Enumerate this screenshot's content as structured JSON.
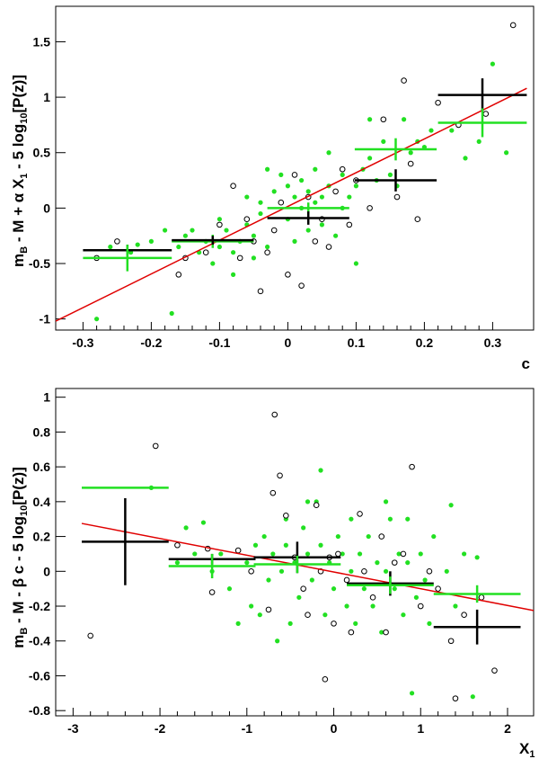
{
  "chart_data": [
    {
      "type": "scatter",
      "xlabel": "c",
      "ylabel_parts": [
        "m",
        "B",
        " - M + α X",
        "1",
        " - 5 log",
        "10",
        "[P(z)]"
      ],
      "xlim": [
        -0.34,
        0.36
      ],
      "ylim": [
        -1.1,
        1.82
      ],
      "xticks": [
        -0.3,
        -0.2,
        -0.1,
        0,
        0.1,
        0.2,
        0.3
      ],
      "xtick_labels": [
        "-0.3",
        "-0.2",
        "-0.1",
        "0",
        "0.1",
        "0.2",
        "0.3"
      ],
      "yticks": [
        -1,
        -0.5,
        0,
        0.5,
        1,
        1.5
      ],
      "ytick_labels": [
        "-1",
        "-0.5",
        "0",
        "0.5",
        "1",
        "1.5"
      ],
      "fit_line": {
        "x": [
          -0.34,
          0.35
        ],
        "y": [
          -1.02,
          1.08
        ],
        "color": "#e00000"
      },
      "series": [
        {
          "name": "green points",
          "color": "#22e022",
          "points": [
            [
              -0.28,
              -1.0
            ],
            [
              -0.26,
              -0.35
            ],
            [
              -0.23,
              -0.4
            ],
            [
              -0.22,
              -0.33
            ],
            [
              -0.2,
              -0.3
            ],
            [
              -0.18,
              -0.2
            ],
            [
              -0.17,
              -0.95
            ],
            [
              -0.16,
              -0.35
            ],
            [
              -0.15,
              -0.45
            ],
            [
              -0.15,
              -0.25
            ],
            [
              -0.14,
              -0.2
            ],
            [
              -0.13,
              -0.4
            ],
            [
              -0.12,
              -0.3
            ],
            [
              -0.11,
              -0.5
            ],
            [
              -0.1,
              -0.35
            ],
            [
              -0.1,
              -0.1
            ],
            [
              -0.09,
              -0.2
            ],
            [
              -0.08,
              -0.4
            ],
            [
              -0.08,
              -0.6
            ],
            [
              -0.07,
              -0.3
            ],
            [
              -0.06,
              0.1
            ],
            [
              -0.06,
              -0.15
            ],
            [
              -0.05,
              -0.25
            ],
            [
              -0.05,
              -0.45
            ],
            [
              -0.04,
              0.05
            ],
            [
              -0.04,
              -0.05
            ],
            [
              -0.03,
              0.35
            ],
            [
              -0.03,
              -0.35
            ],
            [
              -0.02,
              0.15
            ],
            [
              -0.02,
              -0.2
            ],
            [
              -0.01,
              0.3
            ],
            [
              -0.01,
              0.05
            ],
            [
              0.0,
              0.2
            ],
            [
              0.0,
              -0.1
            ],
            [
              0.01,
              0.1
            ],
            [
              0.01,
              -0.3
            ],
            [
              0.02,
              0.0
            ],
            [
              0.02,
              0.25
            ],
            [
              0.03,
              0.15
            ],
            [
              0.03,
              -0.2
            ],
            [
              0.04,
              0.05
            ],
            [
              0.04,
              0.35
            ],
            [
              0.05,
              0.1
            ],
            [
              0.05,
              -0.15
            ],
            [
              0.06,
              0.2
            ],
            [
              0.06,
              0.5
            ],
            [
              0.07,
              0.15
            ],
            [
              0.07,
              -0.25
            ],
            [
              0.08,
              0.3
            ],
            [
              0.08,
              0.0
            ],
            [
              0.09,
              0.1
            ],
            [
              0.1,
              0.2
            ],
            [
              0.1,
              -0.5
            ],
            [
              0.11,
              0.35
            ],
            [
              0.12,
              0.8
            ],
            [
              0.12,
              0.45
            ],
            [
              0.13,
              0.25
            ],
            [
              0.14,
              0.6
            ],
            [
              0.15,
              0.3
            ],
            [
              0.16,
              0.2
            ],
            [
              0.17,
              0.8
            ],
            [
              0.18,
              0.5
            ],
            [
              0.19,
              0.6
            ],
            [
              0.2,
              0.55
            ],
            [
              0.21,
              0.7
            ],
            [
              0.22,
              0.95
            ],
            [
              0.24,
              0.7
            ],
            [
              0.26,
              0.45
            ],
            [
              0.28,
              0.6
            ],
            [
              0.3,
              1.3
            ],
            [
              0.32,
              0.5
            ]
          ]
        },
        {
          "name": "open circles",
          "color": "#000000",
          "points": [
            [
              -0.28,
              -0.45
            ],
            [
              -0.25,
              -0.3
            ],
            [
              -0.16,
              -0.6
            ],
            [
              -0.15,
              -0.45
            ],
            [
              -0.12,
              -0.4
            ],
            [
              -0.1,
              -0.15
            ],
            [
              -0.08,
              0.2
            ],
            [
              -0.07,
              -0.45
            ],
            [
              -0.06,
              -0.1
            ],
            [
              -0.05,
              -0.3
            ],
            [
              -0.04,
              -0.75
            ],
            [
              -0.03,
              -0.4
            ],
            [
              -0.02,
              -0.2
            ],
            [
              -0.01,
              0.05
            ],
            [
              0.0,
              -0.6
            ],
            [
              0.01,
              0.3
            ],
            [
              0.02,
              -0.7
            ],
            [
              0.03,
              0.1
            ],
            [
              0.04,
              -0.3
            ],
            [
              0.05,
              -0.1
            ],
            [
              0.06,
              -0.35
            ],
            [
              0.07,
              0.15
            ],
            [
              0.08,
              0.35
            ],
            [
              0.09,
              -0.15
            ],
            [
              0.1,
              0.25
            ],
            [
              0.12,
              0.0
            ],
            [
              0.14,
              0.8
            ],
            [
              0.16,
              0.1
            ],
            [
              0.17,
              1.15
            ],
            [
              0.18,
              0.4
            ],
            [
              0.19,
              -0.1
            ],
            [
              0.22,
              0.95
            ],
            [
              0.25,
              0.75
            ],
            [
              0.29,
              0.85
            ],
            [
              0.33,
              1.65
            ]
          ]
        }
      ],
      "binned": [
        {
          "color": "#000000",
          "x": -0.235,
          "xerr": 0.065,
          "y": -0.38,
          "yerr": 0.05
        },
        {
          "color": "#22e022",
          "x": -0.235,
          "xerr": 0.065,
          "y": -0.45,
          "yerr": 0.12
        },
        {
          "color": "#22e022",
          "x": -0.11,
          "xerr": 0.06,
          "y": -0.3,
          "yerr": 0.06
        },
        {
          "color": "#000000",
          "x": -0.11,
          "xerr": 0.06,
          "y": -0.29,
          "yerr": 0.04
        },
        {
          "color": "#22e022",
          "x": 0.03,
          "xerr": 0.06,
          "y": 0.0,
          "yerr": 0.05
        },
        {
          "color": "#000000",
          "x": 0.03,
          "xerr": 0.06,
          "y": -0.09,
          "yerr": 0.06
        },
        {
          "color": "#22e022",
          "x": 0.158,
          "xerr": 0.06,
          "y": 0.53,
          "yerr": 0.1
        },
        {
          "color": "#000000",
          "x": 0.158,
          "xerr": 0.06,
          "y": 0.25,
          "yerr": 0.1
        },
        {
          "color": "#000000",
          "x": 0.285,
          "xerr": 0.065,
          "y": 1.02,
          "yerr": 0.15
        },
        {
          "color": "#22e022",
          "x": 0.285,
          "xerr": 0.065,
          "y": 0.77,
          "yerr": 0.13
        }
      ]
    },
    {
      "type": "scatter",
      "xlabel_parts": [
        "X",
        "1"
      ],
      "ylabel_parts": [
        "m",
        "B",
        " - M - β c - 5 log",
        "10",
        "[P(z)]"
      ],
      "xlim": [
        -3.2,
        2.3
      ],
      "ylim": [
        -0.83,
        1.05
      ],
      "xticks": [
        -3,
        -2,
        -1,
        0,
        1,
        2
      ],
      "xtick_labels": [
        "-3",
        "-2",
        "-1",
        "0",
        "1",
        "2"
      ],
      "yticks": [
        -0.8,
        -0.6,
        -0.4,
        -0.2,
        0,
        0.2,
        0.4,
        0.6,
        0.8,
        1
      ],
      "ytick_labels": [
        "-0.8",
        "-0.6",
        "-0.4",
        "-0.2",
        "0",
        "0.2",
        "0.4",
        "0.6",
        "0.8",
        "1"
      ],
      "fit_line": {
        "x": [
          -2.9,
          2.3
        ],
        "y": [
          0.275,
          -0.225
        ],
        "color": "#e00000"
      },
      "series": [
        {
          "name": "green points",
          "color": "#22e022",
          "points": [
            [
              -2.1,
              0.48
            ],
            [
              -1.8,
              0.05
            ],
            [
              -1.7,
              0.25
            ],
            [
              -1.6,
              0.1
            ],
            [
              -1.5,
              0.28
            ],
            [
              -1.4,
              0.0
            ],
            [
              -1.3,
              0.1
            ],
            [
              -1.2,
              -0.1
            ],
            [
              -1.1,
              -0.3
            ],
            [
              -1.0,
              0.05
            ],
            [
              -0.95,
              -0.2
            ],
            [
              -0.9,
              0.15
            ],
            [
              -0.85,
              -0.25
            ],
            [
              -0.8,
              0.2
            ],
            [
              -0.75,
              -0.05
            ],
            [
              -0.7,
              0.1
            ],
            [
              -0.65,
              -0.4
            ],
            [
              -0.6,
              0.0
            ],
            [
              -0.55,
              0.15
            ],
            [
              -0.5,
              -0.3
            ],
            [
              -0.45,
              0.05
            ],
            [
              -0.4,
              -0.15
            ],
            [
              -0.35,
              0.25
            ],
            [
              -0.3,
              0.1
            ],
            [
              -0.25,
              -0.05
            ],
            [
              -0.2,
              0.4
            ],
            [
              -0.15,
              0.15
            ],
            [
              -0.1,
              -0.25
            ],
            [
              -0.05,
              0.05
            ],
            [
              0.0,
              -0.1
            ],
            [
              0.05,
              0.2
            ],
            [
              0.1,
              0.1
            ],
            [
              0.15,
              -0.2
            ],
            [
              0.2,
              0.0
            ],
            [
              0.25,
              -0.3
            ],
            [
              0.3,
              0.1
            ],
            [
              0.35,
              -0.1
            ],
            [
              0.4,
              0.2
            ],
            [
              0.45,
              -0.2
            ],
            [
              0.5,
              0.05
            ],
            [
              0.55,
              -0.35
            ],
            [
              0.6,
              0.0
            ],
            [
              0.65,
              0.3
            ],
            [
              0.7,
              -0.1
            ],
            [
              0.75,
              0.1
            ],
            [
              0.8,
              -0.25
            ],
            [
              0.85,
              0.05
            ],
            [
              0.9,
              -0.7
            ],
            [
              0.95,
              -0.15
            ],
            [
              1.0,
              0.1
            ],
            [
              1.05,
              -0.05
            ],
            [
              1.1,
              -0.3
            ],
            [
              1.15,
              0.2
            ],
            [
              1.2,
              -0.1
            ],
            [
              1.3,
              0.0
            ],
            [
              1.35,
              0.38
            ],
            [
              1.4,
              -0.2
            ],
            [
              1.5,
              0.1
            ],
            [
              1.6,
              -0.72
            ],
            [
              1.65,
              0.08
            ],
            [
              -0.55,
              0.3
            ],
            [
              -0.3,
              0.4
            ],
            [
              0.6,
              0.4
            ],
            [
              0.2,
              0.3
            ],
            [
              -0.15,
              0.58
            ],
            [
              0.85,
              0.3
            ]
          ]
        },
        {
          "name": "open circles",
          "color": "#000000",
          "points": [
            [
              -2.8,
              -0.37
            ],
            [
              -2.05,
              0.72
            ],
            [
              -1.8,
              0.15
            ],
            [
              -1.45,
              0.13
            ],
            [
              -1.4,
              -0.12
            ],
            [
              -1.1,
              0.12
            ],
            [
              -0.95,
              0.0
            ],
            [
              -0.75,
              -0.22
            ],
            [
              -0.7,
              0.45
            ],
            [
              -0.68,
              0.9
            ],
            [
              -0.62,
              0.55
            ],
            [
              -0.55,
              0.32
            ],
            [
              -0.45,
              0.08
            ],
            [
              -0.35,
              -0.1
            ],
            [
              -0.3,
              -0.25
            ],
            [
              -0.2,
              0.38
            ],
            [
              -0.15,
              0.0
            ],
            [
              -0.1,
              -0.62
            ],
            [
              -0.05,
              0.08
            ],
            [
              0.0,
              -0.3
            ],
            [
              0.05,
              0.1
            ],
            [
              0.15,
              -0.05
            ],
            [
              0.2,
              -0.35
            ],
            [
              0.3,
              0.33
            ],
            [
              0.35,
              0.0
            ],
            [
              0.45,
              -0.15
            ],
            [
              0.55,
              0.2
            ],
            [
              0.6,
              -0.35
            ],
            [
              0.7,
              0.05
            ],
            [
              0.8,
              0.1
            ],
            [
              0.9,
              0.6
            ],
            [
              1.0,
              -0.2
            ],
            [
              1.1,
              0.0
            ],
            [
              1.2,
              -0.1
            ],
            [
              1.35,
              -0.4
            ],
            [
              1.4,
              -0.73
            ],
            [
              1.5,
              -0.25
            ],
            [
              1.7,
              -0.15
            ],
            [
              1.85,
              -0.57
            ]
          ]
        }
      ],
      "binned": [
        {
          "color": "#22e022",
          "x": -2.4,
          "xerr": 0.5,
          "y": 0.48,
          "yerr": 0.0
        },
        {
          "color": "#000000",
          "x": -2.4,
          "xerr": 0.5,
          "y": 0.17,
          "yerr": 0.25
        },
        {
          "color": "#000000",
          "x": -1.4,
          "xerr": 0.5,
          "y": 0.07,
          "yerr": 0.03
        },
        {
          "color": "#22e022",
          "x": -1.4,
          "xerr": 0.5,
          "y": 0.03,
          "yerr": 0.07
        },
        {
          "color": "#000000",
          "x": -0.42,
          "xerr": 0.5,
          "y": 0.08,
          "yerr": 0.09
        },
        {
          "color": "#22e022",
          "x": -0.42,
          "xerr": 0.5,
          "y": 0.04,
          "yerr": 0.05
        },
        {
          "color": "#000000",
          "x": 0.65,
          "xerr": 0.5,
          "y": -0.07,
          "yerr": 0.07
        },
        {
          "color": "#22e022",
          "x": 0.65,
          "xerr": 0.5,
          "y": -0.08,
          "yerr": 0.05
        },
        {
          "color": "#22e022",
          "x": 1.65,
          "xerr": 0.5,
          "y": -0.13,
          "yerr": 0.05
        },
        {
          "color": "#000000",
          "x": 1.65,
          "xerr": 0.5,
          "y": -0.32,
          "yerr": 0.1
        }
      ]
    }
  ]
}
